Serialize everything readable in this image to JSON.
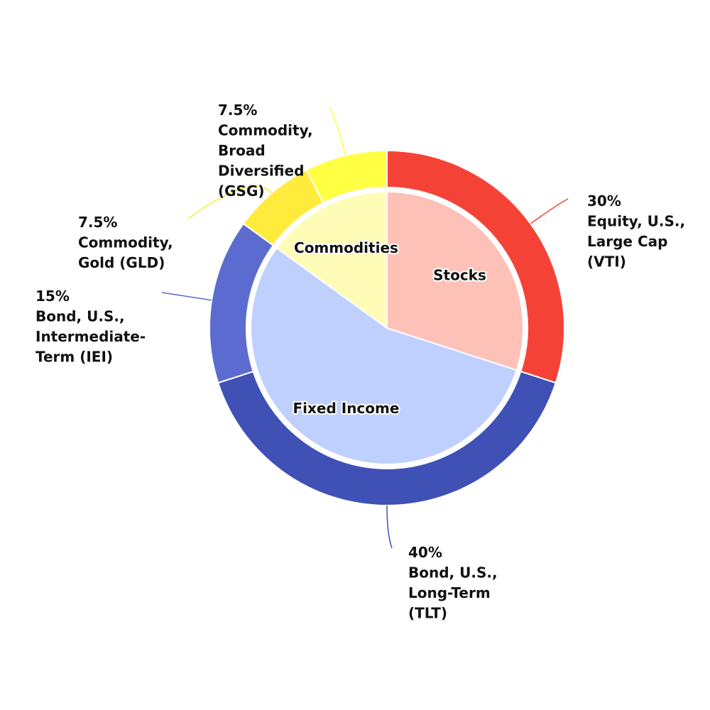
{
  "chart_data": {
    "type": "pie",
    "title": "",
    "inner": [
      {
        "name": "Stocks",
        "value": 30,
        "color": "#fec1b7"
      },
      {
        "name": "Fixed Income",
        "value": 55,
        "color": "#c0d0fe"
      },
      {
        "name": "Commodities",
        "value": 15,
        "color": "#fefcb6"
      }
    ],
    "outer": [
      {
        "percent": "30%",
        "lines": [
          "Equity, U.S.,",
          "Large Cap",
          "(VTI)"
        ],
        "value": 30,
        "color": "#f44336"
      },
      {
        "percent": "40%",
        "lines": [
          "Bond, U.S.,",
          "Long-Term",
          "(TLT)"
        ],
        "value": 40,
        "color": "#3f51b5"
      },
      {
        "percent": "15%",
        "lines": [
          "Bond, U.S.,",
          "Intermediate-",
          "Term (IEI)"
        ],
        "value": 15,
        "color": "#5c6bcf"
      },
      {
        "percent": "7.5%",
        "lines": [
          "Commodity,",
          "Gold (GLD)"
        ],
        "value": 7.5,
        "color": "#ffeb3b"
      },
      {
        "percent": "7.5%",
        "lines": [
          "Commodity,",
          "Broad",
          "Diversified",
          "(GSG)"
        ],
        "value": 7.5,
        "color": "#ffff44"
      }
    ]
  }
}
